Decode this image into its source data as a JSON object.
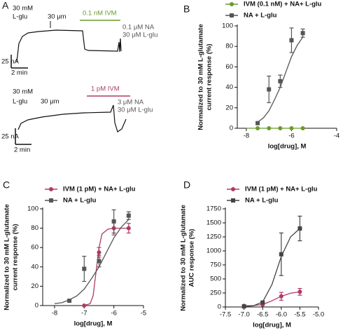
{
  "panel_a": {
    "label": "A",
    "top": {
      "agonist": "30 mM",
      "agonist_name": "L-glu",
      "wash": "30 μm",
      "drug": "0.1 nM IVM",
      "add1": "0.1 μM NA",
      "add2": "30 μM L-glu",
      "scale_y": "25 nA",
      "scale_x": "2 min"
    },
    "bottom": {
      "agonist": "30 mM",
      "agonist_name": "L-glu",
      "wash": "30 μm",
      "drug": "1 pM IVM",
      "add1": "3 μM NA",
      "add2": "30 μM L-glu",
      "scale_y": "25 nA",
      "scale_x": "2 min"
    }
  },
  "chart_data": [
    {
      "type": "scatter",
      "label": "B",
      "xlabel": "log[drug], M",
      "ylabel": [
        "Normalized to 30 mM L-glutamate",
        "current response (%)"
      ],
      "xlim": [
        -8.4,
        -4
      ],
      "xticks": [
        -8,
        -6,
        -4
      ],
      "ylim": [
        0,
        100
      ],
      "yticks": [
        0,
        20,
        40,
        60,
        80,
        100
      ],
      "series": [
        {
          "name": "IVM (0.1 nM) + NA+ L-glu",
          "color": "#6b9a2c",
          "marker": "circle",
          "x": [
            -7.5,
            -7,
            -6.5,
            -6,
            -5.5
          ],
          "values": [
            0,
            0,
            0,
            0,
            0
          ],
          "errors": [
            null,
            null,
            null,
            null,
            null
          ],
          "fit": {
            "x": [
              -8,
              -5.5
            ],
            "values": [
              0,
              0
            ]
          }
        },
        {
          "name": "NA + L-glu",
          "color": "#555555",
          "marker": "square",
          "x": [
            -7.5,
            -7,
            -6.5,
            -6,
            -5.5
          ],
          "values": [
            5,
            38,
            46,
            86,
            93
          ],
          "errors": [
            null,
            13,
            6,
            12,
            4
          ],
          "fit": {
            "x": [
              -7.5,
              -7.25,
              -7,
              -6.75,
              -6.5,
              -6.25,
              -6,
              -5.75,
              -5.5
            ],
            "values": [
              6,
              10,
              17,
              28,
              40,
              55,
              70,
              81,
              89
            ]
          }
        }
      ]
    },
    {
      "type": "scatter",
      "label": "C",
      "xlabel": "log[drug], M",
      "ylabel": [
        "Normalized to 30 mM L-glutamate",
        "current response (%)"
      ],
      "xlim": [
        -8.4,
        -5
      ],
      "xticks": [
        -8,
        -7,
        -6,
        -5
      ],
      "ylim": [
        0,
        100
      ],
      "yticks": [
        0,
        20,
        40,
        60,
        80,
        100
      ],
      "series": [
        {
          "name": "IVM (1 pM) + NA+ L-glu",
          "color": "#b03a68",
          "marker": "circle",
          "x": [
            -7,
            -6.5,
            -6,
            -5.5
          ],
          "values": [
            0,
            55,
            80,
            80
          ],
          "errors": [
            null,
            5,
            7,
            5
          ],
          "fit": {
            "x": [
              -7,
              -6.8,
              -6.7,
              -6.6,
              -6.5,
              -6.4,
              -6.2,
              -6,
              -5.5
            ],
            "values": [
              0,
              2,
              10,
              35,
              60,
              74,
              79,
              80,
              80
            ]
          }
        },
        {
          "name": "NA + L-glu",
          "color": "#555555",
          "marker": "square",
          "x": [
            -7.5,
            -7,
            -6.5,
            -6,
            -5.5
          ],
          "values": [
            5,
            38,
            46,
            87,
            93
          ],
          "errors": [
            null,
            13,
            6,
            12,
            4
          ],
          "fit": {
            "x": [
              -8,
              -7.75,
              -7.5,
              -7.25,
              -7,
              -6.75,
              -6.5,
              -6.25,
              -6,
              -5.75,
              -5.5
            ],
            "values": [
              2,
              3,
              6,
              10,
              17,
              28,
              40,
              55,
              70,
              81,
              89
            ]
          }
        }
      ]
    },
    {
      "type": "scatter",
      "label": "D",
      "xlabel": "log[drug], M",
      "ylabel": [
        "Normalized to 30 mM L-glutamate",
        "AUC response (%)"
      ],
      "xlim": [
        -7.5,
        -5
      ],
      "xticks": [
        -7.5,
        {
          "value": -7,
          "label": "-7.0"
        },
        -6.5,
        {
          "value": -6,
          "label": "-6.0"
        },
        -5.5,
        {
          "value": -5,
          "label": "-5.0"
        }
      ],
      "ylim": [
        0,
        1750
      ],
      "yticks": [
        0,
        250,
        500,
        750,
        1000,
        1250,
        1500,
        1750
      ],
      "series": [
        {
          "name": "IVM (1 pM) + NA+ L-glu",
          "color": "#b03a68",
          "marker": "circle",
          "x": [
            -7,
            -6.5,
            -6,
            -5.5
          ],
          "values": [
            20,
            40,
            190,
            270
          ],
          "errors": [
            null,
            null,
            70,
            60
          ],
          "fit": {
            "x": [
              -7,
              -6.75,
              -6.5,
              -6.25,
              -6,
              -5.75,
              -5.5
            ],
            "values": [
              20,
              25,
              45,
              110,
              190,
              245,
              270
            ]
          }
        },
        {
          "name": "NA + L-glu",
          "color": "#444444",
          "marker": "square",
          "x": [
            -7,
            -6.5,
            -6,
            -5.5
          ],
          "values": [
            10,
            80,
            940,
            1400
          ],
          "errors": [
            null,
            null,
            380,
            220
          ],
          "fit": {
            "x": [
              -7,
              -6.75,
              -6.5,
              -6.25,
              -6,
              -5.75,
              -5.5
            ],
            "values": [
              10,
              20,
              90,
              400,
              900,
              1250,
              1400
            ]
          }
        }
      ]
    }
  ]
}
